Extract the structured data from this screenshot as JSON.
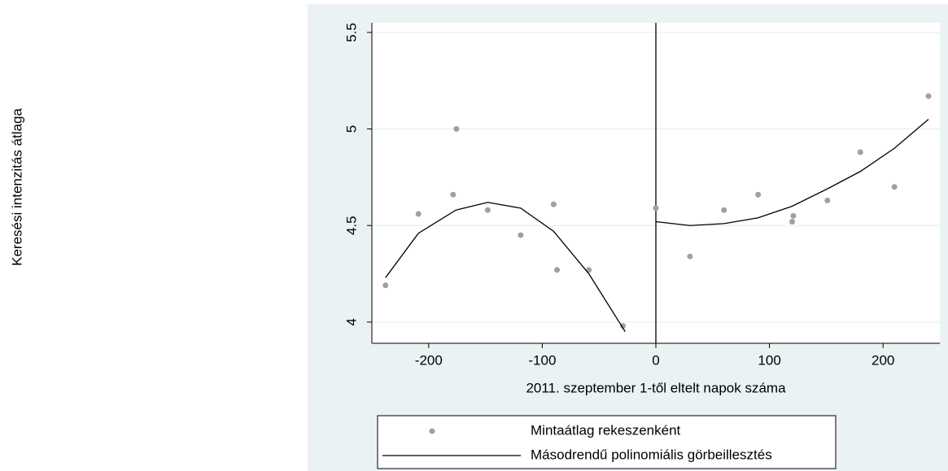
{
  "chart_data": {
    "type": "scatter",
    "y_label": "Keresési intenzitás átlaga",
    "x_label": "2011. szeptember 1-től eltelt napok száma",
    "xlim": [
      -250,
      250
    ],
    "ylim": [
      3.89,
      5.55
    ],
    "xticks": [
      -200,
      -100,
      0,
      100,
      200
    ],
    "yticks": [
      4,
      4.5,
      5,
      5.5
    ],
    "xline": 0,
    "grid": true,
    "legend_position": "bottom",
    "series": [
      {
        "name": "Mintaátlag rekeszenként",
        "kind": "scatter",
        "color": "#a0a0a0",
        "x": [
          -238,
          -209,
          -178.5,
          -175.6,
          -148,
          -119,
          -90,
          -87,
          -59,
          -29,
          0,
          30,
          60,
          90,
          120,
          121,
          151,
          180,
          210,
          240
        ],
        "values": [
          4.19,
          4.56,
          4.66,
          5.0,
          4.58,
          4.45,
          4.61,
          4.27,
          4.27,
          3.98,
          4.59,
          4.34,
          4.58,
          4.66,
          4.52,
          4.55,
          4.63,
          4.88,
          4.7,
          5.17
        ]
      },
      {
        "name": "Másodrendű polinomiális görbeillesztés",
        "kind": "line",
        "color": "#000000",
        "x": [
          -238,
          -209,
          -176,
          -148,
          -119,
          -90,
          -59,
          -27,
          null,
          0,
          30,
          60,
          90,
          120,
          151,
          180,
          210,
          240
        ],
        "values": [
          4.23,
          4.46,
          4.58,
          4.62,
          4.59,
          4.47,
          4.25,
          3.95,
          null,
          4.52,
          4.5,
          4.51,
          4.54,
          4.6,
          4.69,
          4.78,
          4.9,
          5.05
        ]
      }
    ]
  }
}
